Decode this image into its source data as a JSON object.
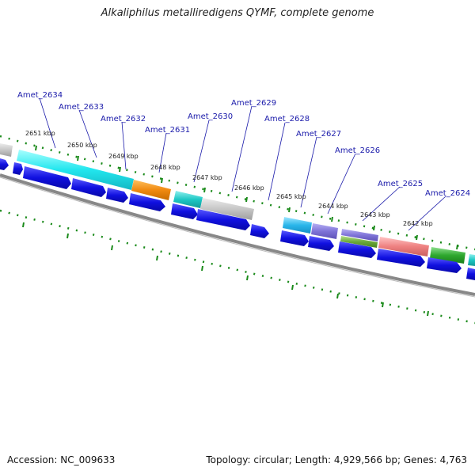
{
  "title": "Alkaliphilus metalliredigens QYMF, complete genome",
  "footer": {
    "accession": "Accession: NC_009633",
    "stats": "Topology: circular; Length: 4,929,566 bp; Genes: 4,763"
  },
  "colors": {
    "gene_label": "#1a1aaa",
    "cds_arrow": "#1010e0",
    "backbone": "#888888",
    "tick": "#1a8a1a"
  },
  "gene_labels": [
    "Amet_2634",
    "Amet_2633",
    "Amet_2632",
    "Amet_2631",
    "Amet_2630",
    "Amet_2629",
    "Amet_2628",
    "Amet_2627",
    "Amet_2626",
    "Amet_2625",
    "Amet_2624"
  ],
  "kbp_labels": [
    "2651 kbp",
    "2650 kbp",
    "2649 kbp",
    "2648 kbp",
    "2647 kbp",
    "2646 kbp",
    "2645 kbp",
    "2644 kbp",
    "2643 kbp",
    "2642 kbp"
  ]
}
